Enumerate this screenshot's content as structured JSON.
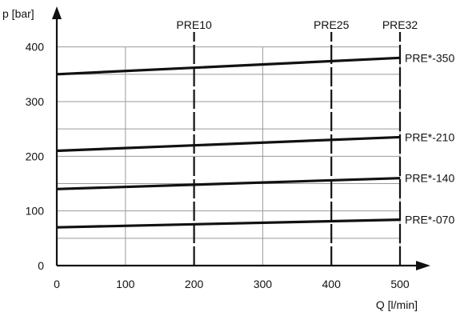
{
  "chart_data": {
    "type": "line",
    "xlabel": "Q [l/min]",
    "ylabel": "p [bar]",
    "xlim": [
      0,
      500
    ],
    "ylim": [
      0,
      420
    ],
    "grid": true,
    "x_ticks": [
      0,
      100,
      200,
      300,
      400,
      500
    ],
    "y_ticks": [
      0,
      100,
      200,
      300,
      400
    ],
    "series": [
      {
        "name": "PRE*-350",
        "x": [
          0,
          500
        ],
        "y": [
          350,
          380
        ]
      },
      {
        "name": "PRE*-210",
        "x": [
          0,
          500
        ],
        "y": [
          210,
          235
        ]
      },
      {
        "name": "PRE*-140",
        "x": [
          0,
          500
        ],
        "y": [
          140,
          160
        ]
      },
      {
        "name": "PRE*-070",
        "x": [
          0,
          500
        ],
        "y": [
          70,
          84
        ]
      }
    ],
    "markers": [
      {
        "label": "PRE10",
        "x": 200
      },
      {
        "label": "PRE25",
        "x": 400
      },
      {
        "label": "PRE32",
        "x": 500
      }
    ],
    "colors": {
      "line": "#111111",
      "grid": "#9a9a9a",
      "axis": "#111111"
    }
  }
}
